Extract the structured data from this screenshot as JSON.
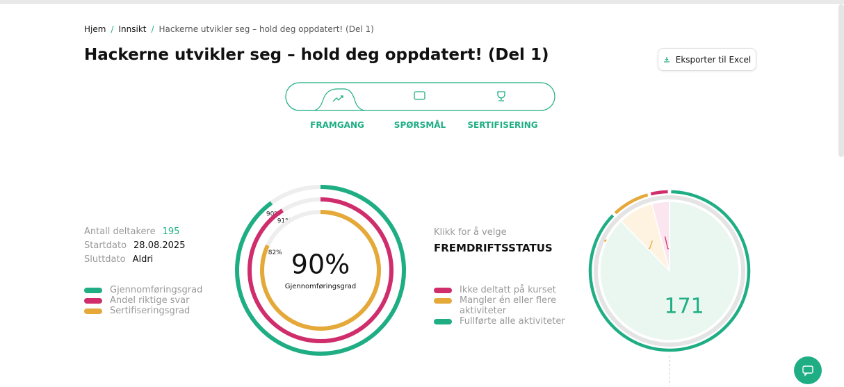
{
  "breadcrumb": [
    "Hjem",
    "Innsikt",
    "Hackerne utvikler seg – hold deg oppdatert! (Del 1)"
  ],
  "header": {
    "title": "Hackerne utvikler seg – hold deg oppdatert! (Del 1)",
    "export_button": "Eksporter til Excel"
  },
  "tabs": [
    "FRAMGANG",
    "SPØRSMÅL",
    "SERTIFISERING"
  ],
  "stats": [
    {
      "label": "Antall deltakere",
      "value": 195
    },
    {
      "label": "Startdato",
      "value": "28.08.2025"
    },
    {
      "label": "Sluttdato",
      "value": "Aldri"
    }
  ],
  "chart_data": [
    {
      "type": "radial",
      "categories": [
        "Gjennomføringsgrad",
        "Andel riktige svar",
        "Sertifiseringsgrad"
      ],
      "values": [
        90,
        91,
        82
      ],
      "value_labels": [
        "90%",
        "91%",
        "82%"
      ],
      "colors": [
        "#1fae84",
        "#cf2d6b",
        "#e5a93a"
      ],
      "ylim": [
        0,
        100
      ]
    },
    {
      "type": "pie",
      "subtitle": "Klikk for å velge",
      "title": "FREMDRIFTSSTATUS",
      "categories": [
        "Ikke deltatt på kurset",
        "Mangler én eller flere aktiviteter",
        "Fullførte alle aktiviteter"
      ],
      "values": [
        8,
        16,
        171
      ],
      "colors": [
        "#cf2d6b",
        "#e5a93a",
        "#1fae84"
      ]
    }
  ]
}
